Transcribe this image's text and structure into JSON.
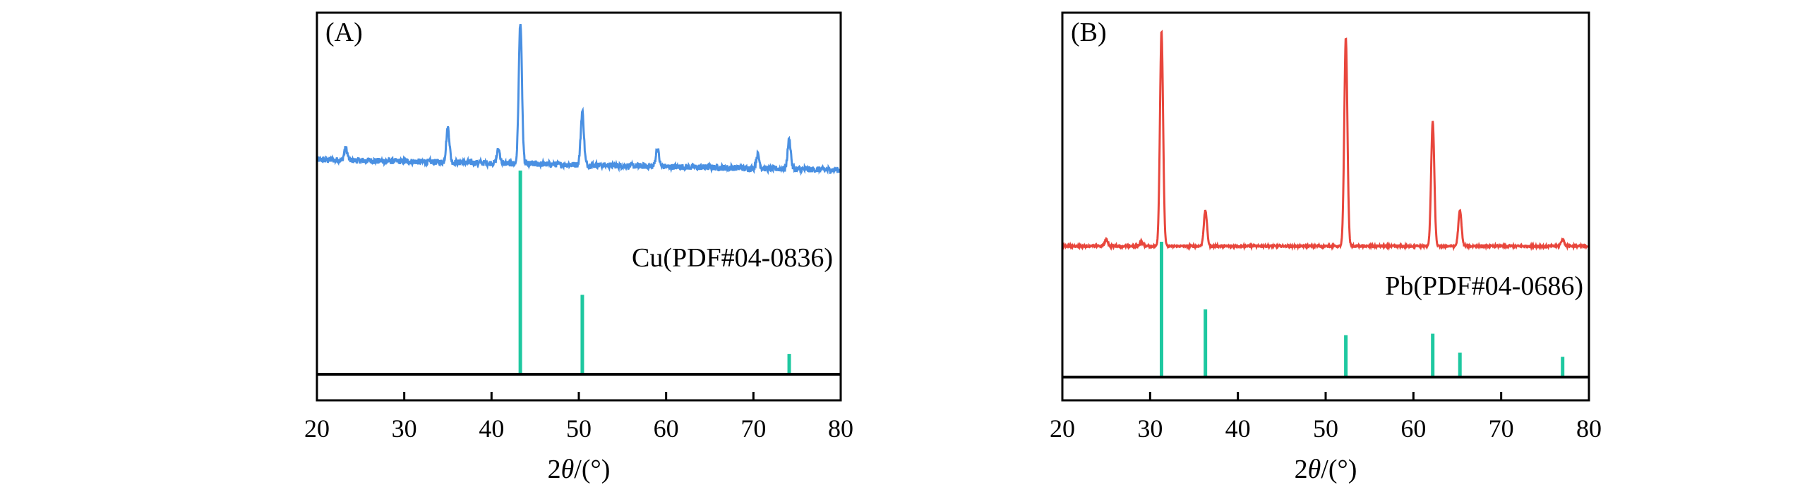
{
  "chart_data": [
    {
      "type": "line",
      "panel_label": "(A)",
      "xlabel_main": "2",
      "xlabel_var": "θ",
      "xlabel_unit": "/(°)",
      "xlim": [
        20,
        80
      ],
      "xticks": [
        20,
        30,
        40,
        50,
        60,
        70,
        80
      ],
      "y_ticks_shown": false,
      "grid": false,
      "series": [
        {
          "color": "#4a90e2",
          "baseline_start": 0.3,
          "baseline_end": 0.24,
          "peaks": [
            {
              "x": 23.3,
              "height": 0.07
            },
            {
              "x": 35.0,
              "height": 0.2
            },
            {
              "x": 40.8,
              "height": 0.08
            },
            {
              "x": 43.3,
              "height": 0.82
            },
            {
              "x": 50.4,
              "height": 0.31
            },
            {
              "x": 59.0,
              "height": 0.1
            },
            {
              "x": 70.5,
              "height": 0.08
            },
            {
              "x": 74.1,
              "height": 0.17
            }
          ]
        }
      ],
      "reference": {
        "label": "Cu(PDF#04-0836)",
        "color": "#1ec8a0",
        "lines": [
          {
            "x": 43.3,
            "intensity": 100
          },
          {
            "x": 50.4,
            "intensity": 39
          },
          {
            "x": 74.1,
            "intensity": 10
          }
        ]
      }
    },
    {
      "type": "line",
      "panel_label": "(B)",
      "xlabel_main": "2",
      "xlabel_var": "θ",
      "xlabel_unit": "/(°)",
      "xlim": [
        20,
        80
      ],
      "xticks": [
        20,
        30,
        40,
        50,
        60,
        70,
        80
      ],
      "y_ticks_shown": false,
      "grid": false,
      "series": [
        {
          "color": "#e8463c",
          "baseline_start": 0.05,
          "baseline_end": 0.05,
          "peaks": [
            {
              "x": 25.0,
              "height": 0.03
            },
            {
              "x": 29.0,
              "height": 0.02
            },
            {
              "x": 31.3,
              "height": 0.97
            },
            {
              "x": 36.3,
              "height": 0.16
            },
            {
              "x": 52.3,
              "height": 0.94
            },
            {
              "x": 62.2,
              "height": 0.56
            },
            {
              "x": 65.3,
              "height": 0.16
            },
            {
              "x": 77.0,
              "height": 0.03
            }
          ]
        }
      ],
      "reference": {
        "label": "Pb(PDF#04-0686)",
        "color": "#1ec8a0",
        "lines": [
          {
            "x": 31.3,
            "intensity": 100
          },
          {
            "x": 36.3,
            "intensity": 50
          },
          {
            "x": 52.3,
            "intensity": 31
          },
          {
            "x": 62.2,
            "intensity": 32
          },
          {
            "x": 65.3,
            "intensity": 18
          },
          {
            "x": 77.0,
            "intensity": 15
          }
        ]
      }
    }
  ]
}
